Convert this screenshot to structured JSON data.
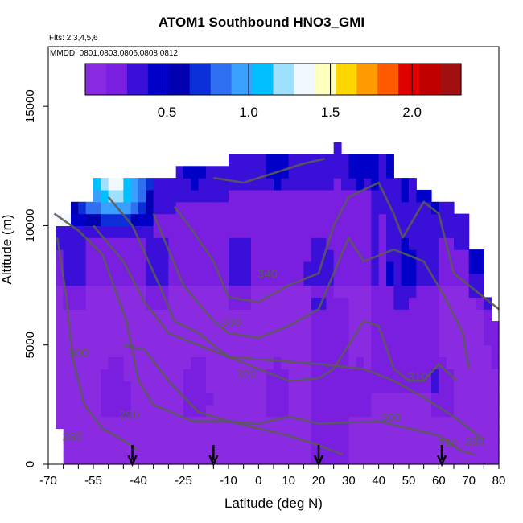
{
  "header": {
    "title": "ATOM1 Southbound HNO3_GMI",
    "flights": "Flts: 2,3,4,5,6",
    "mmdd": "MMDD: 0801,0803,0806,0808,0812"
  },
  "colors": {
    "colorbar": [
      "#8a2be2",
      "#7a1fe0",
      "#3a10d8",
      "#0000c8",
      "#0000b0",
      "#0a2fd8",
      "#2f6ff0",
      "#3aa0ff",
      "#00c0ff",
      "#a0e0ff",
      "#f2f8ff",
      "#ffffc0",
      "#ffd700",
      "#ff9a00",
      "#ff5a00",
      "#e00000",
      "#c00000",
      "#a01010"
    ],
    "contour": "#5a5a5a",
    "background": "#ffffff"
  },
  "chart_data": {
    "type": "heatmap",
    "title": "ATOM1 Southbound HNO3_GMI",
    "xlabel": "Latitude (deg N)",
    "ylabel": "Altitude (m)",
    "xlim": [
      -70,
      80
    ],
    "ylim": [
      0,
      17500
    ],
    "x_ticks": [
      -70,
      -55,
      -40,
      -25,
      -10,
      0,
      10,
      20,
      30,
      40,
      50,
      60,
      70,
      80
    ],
    "y_ticks": [
      0,
      5000,
      10000,
      15000
    ],
    "colorbar": {
      "range": [
        0,
        2.3
      ],
      "ticks": [
        0.5,
        1.0,
        1.5,
        2.0
      ],
      "tick_labels": [
        "0.5",
        "1.0",
        "1.5",
        "2.0"
      ]
    },
    "field_description": "Mostly low values (~0.1) in the lower and middle troposphere; higher values (~0.3-0.5) in upper troposphere; peaks near 1.0-1.6 at high southern latitudes around 10000-12000 m.",
    "contours": [
      {
        "label": "280",
        "points": [
          [
            -67,
            9500
          ],
          [
            -64,
            7000
          ],
          [
            -62,
            4500
          ],
          [
            -58,
            2500
          ],
          [
            -52,
            1500
          ],
          [
            -45,
            1000
          ],
          [
            -40,
            600
          ]
        ]
      },
      {
        "label": "290",
        "points": [
          [
            -68,
            10500
          ],
          [
            -60,
            9800
          ],
          [
            -52,
            8800
          ],
          [
            -44,
            6000
          ],
          [
            -40,
            3500
          ],
          [
            -35,
            2500
          ],
          [
            -22,
            1800
          ],
          [
            -10,
            1800
          ],
          [
            0,
            1500
          ],
          [
            10,
            1200
          ],
          [
            20,
            800
          ],
          [
            28,
            400
          ]
        ]
      },
      {
        "label": "300",
        "points": [
          [
            -45,
            5000
          ],
          [
            -38,
            4800
          ],
          [
            -30,
            3500
          ],
          [
            -20,
            2200
          ],
          [
            -10,
            1800
          ],
          [
            0,
            1700
          ],
          [
            10,
            2000
          ],
          [
            20,
            1700
          ],
          [
            40,
            1800
          ],
          [
            50,
            1500
          ],
          [
            60,
            1200
          ],
          [
            67,
            600
          ],
          [
            72,
            400
          ]
        ]
      },
      {
        "label": "310",
        "points": [
          [
            -55,
            10000
          ],
          [
            -45,
            8500
          ],
          [
            -38,
            6800
          ],
          [
            -30,
            5500
          ],
          [
            -20,
            5000
          ],
          [
            -10,
            4500
          ],
          [
            20,
            4200
          ],
          [
            35,
            4000
          ],
          [
            45,
            3500
          ],
          [
            55,
            2800
          ],
          [
            65,
            2000
          ],
          [
            75,
            1000
          ]
        ]
      },
      {
        "label": "320",
        "points": [
          [
            -50,
            11200
          ],
          [
            -42,
            10000
          ],
          [
            -33,
            7500
          ],
          [
            -28,
            6000
          ],
          [
            -20,
            5500
          ],
          [
            -10,
            4500
          ],
          [
            0,
            4000
          ],
          [
            10,
            3500
          ],
          [
            20,
            3600
          ],
          [
            25,
            4000
          ],
          [
            30,
            5000
          ],
          [
            35,
            6000
          ],
          [
            40,
            5800
          ],
          [
            45,
            4000
          ],
          [
            50,
            3500
          ],
          [
            55,
            3500
          ],
          [
            60,
            4200
          ],
          [
            66,
            3500
          ]
        ]
      },
      {
        "label": "330",
        "points": [
          [
            -35,
            10500
          ],
          [
            -30,
            9000
          ],
          [
            -25,
            7500
          ],
          [
            -15,
            6000
          ],
          [
            -10,
            5500
          ],
          [
            0,
            5300
          ],
          [
            10,
            5800
          ],
          [
            20,
            6500
          ],
          [
            25,
            8000
          ],
          [
            30,
            9500
          ],
          [
            35,
            8500
          ],
          [
            45,
            9000
          ],
          [
            55,
            8500
          ],
          [
            62,
            7000
          ],
          [
            68,
            5500
          ],
          [
            70,
            4000
          ]
        ]
      },
      {
        "label": "340",
        "points": [
          [
            -28,
            10800
          ],
          [
            -22,
            9800
          ],
          [
            -15,
            8500
          ],
          [
            -10,
            7000
          ],
          [
            0,
            6800
          ],
          [
            10,
            7500
          ],
          [
            20,
            8000
          ],
          [
            25,
            10000
          ],
          [
            30,
            11200
          ],
          [
            40,
            11800
          ],
          [
            45,
            10500
          ],
          [
            48,
            9500
          ],
          [
            55,
            11000
          ],
          [
            60,
            10500
          ],
          [
            65,
            8000
          ],
          [
            75,
            7000
          ],
          [
            80,
            6500
          ]
        ]
      },
      {
        "label": "",
        "points": [
          [
            -15,
            12000
          ],
          [
            -5,
            11800
          ],
          [
            5,
            12200
          ],
          [
            15,
            12600
          ],
          [
            22,
            12800
          ]
        ]
      }
    ],
    "annotations": [
      {
        "text": "280",
        "x": -62,
        "y": 1000
      },
      {
        "text": "290",
        "x": -43,
        "y": 1900
      },
      {
        "text": "300",
        "x": -60,
        "y": 4500
      },
      {
        "text": "310",
        "x": 53,
        "y": 3500
      },
      {
        "text": "320",
        "x": -4,
        "y": 3600
      },
      {
        "text": "330",
        "x": -9,
        "y": 5800
      },
      {
        "text": "340",
        "x": 3,
        "y": 7800
      },
      {
        "text": "300",
        "x": 44,
        "y": 1800
      },
      {
        "text": "290",
        "x": 63,
        "y": 700
      },
      {
        "text": "280",
        "x": 72,
        "y": 800
      }
    ],
    "arrows_latitudes": [
      -42,
      -15,
      20,
      61
    ]
  }
}
